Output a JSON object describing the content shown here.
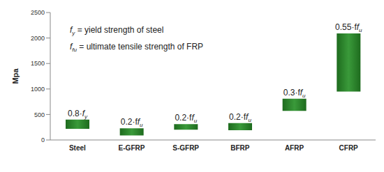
{
  "chart_data": {
    "type": "bar",
    "y_label": "Mpa",
    "categories": [
      "Steel",
      "E-GFRP",
      "S-GFRP",
      "BFRP",
      "AFRP",
      "CFRP"
    ],
    "values": [
      [
        220,
        400
      ],
      [
        90,
        230
      ],
      [
        200,
        310
      ],
      [
        190,
        330
      ],
      [
        570,
        810
      ],
      [
        950,
        2090
      ]
    ],
    "color": "#1e6b1e",
    "annotations": [
      "0.8·fy",
      "0.2·ffu",
      "0.2·ffu",
      "0.2·ffu",
      "0.3·ffu",
      "0.55·ffu"
    ],
    "notes": [
      "fy = yield strength of steel",
      "ffu = ultimate tensile strength of FRP"
    ],
    "ylim": [
      0,
      2500
    ],
    "yticks": [
      0,
      500,
      1000,
      1500,
      2000,
      2500
    ],
    "grid": false
  }
}
